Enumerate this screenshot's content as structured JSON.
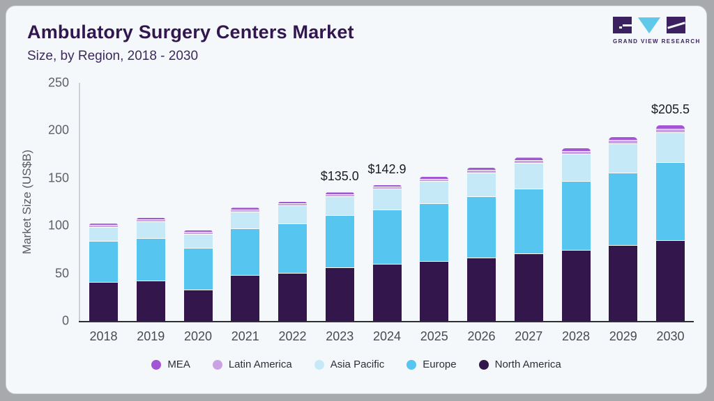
{
  "header": {
    "title": "Ambulatory Surgery Centers Market",
    "subtitle": "Size, by Region, 2018 - 2030",
    "logo_text": "GRAND VIEW RESEARCH"
  },
  "colors": {
    "page_bg": "#a8a9ad",
    "card_bg": "#f5f8fb",
    "title": "#321650",
    "subtitle": "#3c2a5e",
    "logo_purple": "#3b2160",
    "logo_cyan": "#5ec9ea",
    "axis_line": "#2e2e35"
  },
  "chart_data": {
    "type": "bar",
    "stacked": true,
    "title": "Ambulatory Surgery Centers Market",
    "subtitle": "Size, by Region, 2018 - 2030",
    "xlabel": "",
    "ylabel": "Market Size (US$B)",
    "ylim": [
      0,
      250
    ],
    "yticks": [
      0,
      50,
      100,
      150,
      200,
      250
    ],
    "grid": false,
    "legend_position": "bottom",
    "categories": [
      "2018",
      "2019",
      "2020",
      "2021",
      "2022",
      "2023",
      "2024",
      "2025",
      "2026",
      "2027",
      "2028",
      "2029",
      "2030"
    ],
    "series": [
      {
        "name": "North America",
        "color": "#33174c",
        "values": [
          40.0,
          41.6,
          32.5,
          47.4,
          49.8,
          55.4,
          59.1,
          62.1,
          65.6,
          70.1,
          74.2,
          78.7,
          84.1
        ]
      },
      {
        "name": "Europe",
        "color": "#56c5f0",
        "values": [
          43.3,
          45.0,
          43.3,
          49.0,
          52.0,
          54.7,
          57.5,
          61.0,
          64.5,
          68.2,
          72.1,
          76.3,
          82.0
        ]
      },
      {
        "name": "Asia Pacific",
        "color": "#c6e9f8",
        "values": [
          14.9,
          17.0,
          14.9,
          17.4,
          19.2,
          20.3,
          21.3,
          22.8,
          24.8,
          26.6,
          28.5,
          30.6,
          31.2
        ]
      },
      {
        "name": "Latin America",
        "color": "#caa2e4",
        "values": [
          1.9,
          2.2,
          2.1,
          2.4,
          1.9,
          2.2,
          2.4,
          2.7,
          2.9,
          3.1,
          3.2,
          3.5,
          4.0
        ]
      },
      {
        "name": "MEA",
        "color": "#a355d5",
        "values": [
          2.2,
          2.5,
          2.4,
          2.7,
          2.1,
          2.4,
          2.6,
          3.0,
          3.3,
          3.5,
          3.6,
          3.9,
          4.2
        ]
      }
    ],
    "totals": [
      102.3,
      108.3,
      95.2,
      118.9,
      125.0,
      135.0,
      142.9,
      151.6,
      161.1,
      171.5,
      181.6,
      193.0,
      205.5
    ],
    "legend_order": [
      "MEA",
      "Latin America",
      "Asia Pacific",
      "Europe",
      "North America"
    ],
    "annotations": [
      {
        "category": "2023",
        "label": "$135.0"
      },
      {
        "category": "2024",
        "label": "$142.9"
      },
      {
        "category": "2030",
        "label": "$205.5"
      }
    ]
  }
}
